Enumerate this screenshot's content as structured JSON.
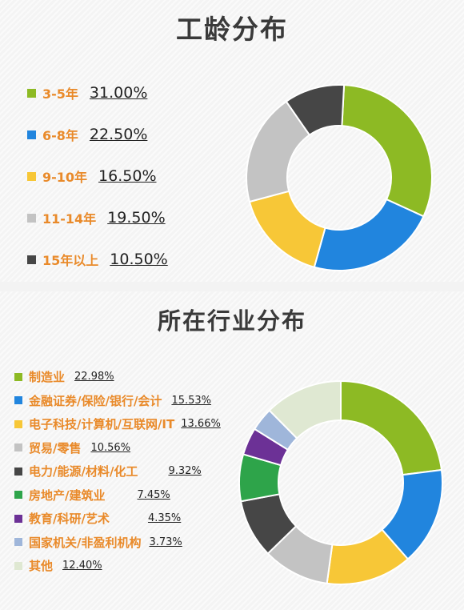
{
  "chart_data": [
    {
      "type": "pie",
      "title": "工龄分布",
      "donut": true,
      "legend_position": "left",
      "categories": [
        "3-5年",
        "6-8年",
        "9-10年",
        "11-14年",
        "15年以上"
      ],
      "values": [
        31.0,
        22.5,
        16.5,
        19.5,
        10.5
      ],
      "value_labels": [
        "31.00%",
        "22.50%",
        "16.50%",
        "19.50%",
        "10.50%"
      ],
      "colors": [
        "#8dba24",
        "#2185de",
        "#f7c737",
        "#c3c3c3",
        "#464646"
      ]
    },
    {
      "type": "pie",
      "title": "所在行业分布",
      "donut": true,
      "legend_position": "left",
      "categories": [
        "制造业",
        "金融证券/保险/银行/会计",
        "电子科技/计算机/互联网/IT",
        "贸易/零售",
        "电力/能源/材料/化工",
        "房地产/建筑业",
        "教育/科研/艺术",
        "国家机关/非盈利机构",
        "其他"
      ],
      "values": [
        22.98,
        15.53,
        13.66,
        10.56,
        9.32,
        7.45,
        4.35,
        3.73,
        12.4
      ],
      "value_labels": [
        "22.98%",
        "15.53%",
        "13.66%",
        "10.56%",
        "9.32%",
        "7.45%",
        "4.35%",
        "3.73%",
        "12.40%"
      ],
      "colors": [
        "#8dba24",
        "#2185de",
        "#f7c737",
        "#c3c3c3",
        "#464646",
        "#2ea44a",
        "#6c3196",
        "#9fb6da",
        "#dfe8d2"
      ]
    }
  ]
}
